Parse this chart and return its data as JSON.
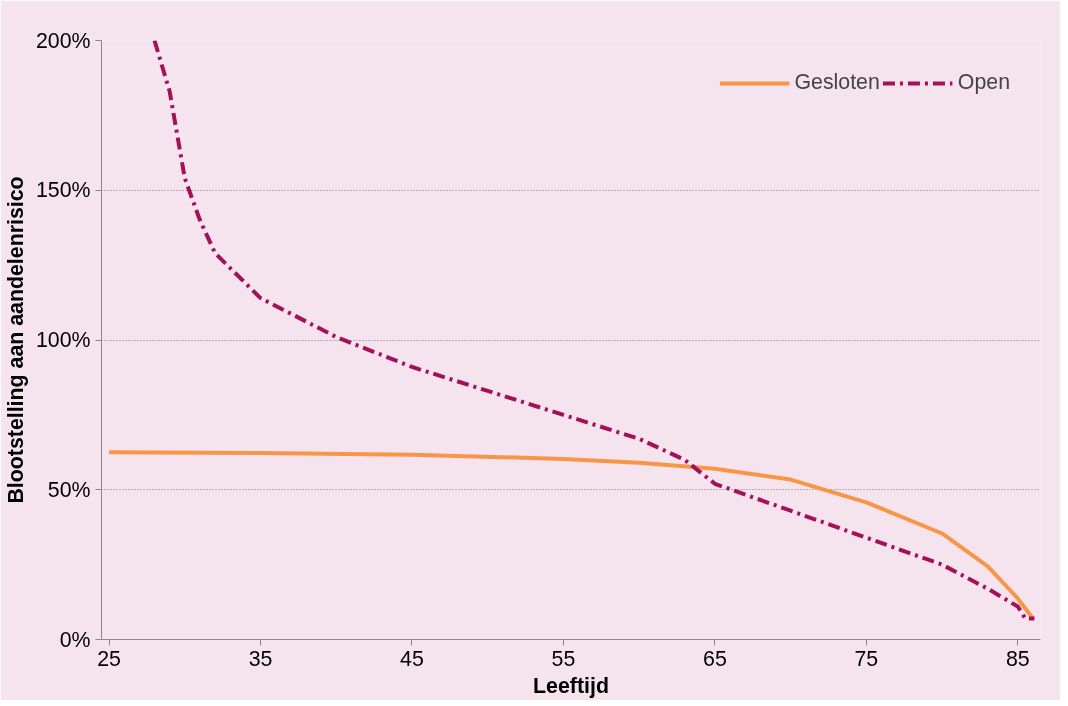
{
  "chart_data": {
    "type": "line",
    "xlabel": "Leeftijd",
    "ylabel": "Blootstelling aan aandelenrisico",
    "xlim": [
      24.5,
      86.5
    ],
    "xticks": [
      25,
      35,
      45,
      55,
      65,
      75,
      85
    ],
    "ylim": [
      0,
      200
    ],
    "yticks": [
      {
        "value": 0,
        "label": "0%"
      },
      {
        "value": 50,
        "label": "50%"
      },
      {
        "value": 100,
        "label": "100%"
      },
      {
        "value": 150,
        "label": "150%"
      },
      {
        "value": 200,
        "label": "200%"
      }
    ],
    "grid": "y",
    "legend": "top right",
    "series": [
      {
        "name": "Gesloten",
        "color": "#f79646",
        "line_style": "solid",
        "x": [
          25,
          35,
          45,
          55,
          60,
          65,
          70,
          75,
          80,
          83,
          85,
          86
        ],
        "values": [
          62.5,
          62.3,
          61.7,
          60.3,
          59,
          57,
          53.4,
          45.8,
          35.4,
          24.5,
          13.7,
          7
        ]
      },
      {
        "name": "Open",
        "color": "#a5105a",
        "line_style": "dashdot",
        "x": [
          28,
          29,
          30,
          31,
          32,
          35,
          40,
          45,
          50,
          55,
          60,
          63,
          65,
          70,
          75,
          80,
          83,
          85,
          85.5,
          86.1
        ],
        "values": [
          200,
          183,
          154,
          140,
          129,
          114,
          101,
          91,
          83,
          75,
          67,
          60,
          52,
          43,
          34,
          25,
          17,
          11,
          7,
          7
        ]
      }
    ]
  }
}
